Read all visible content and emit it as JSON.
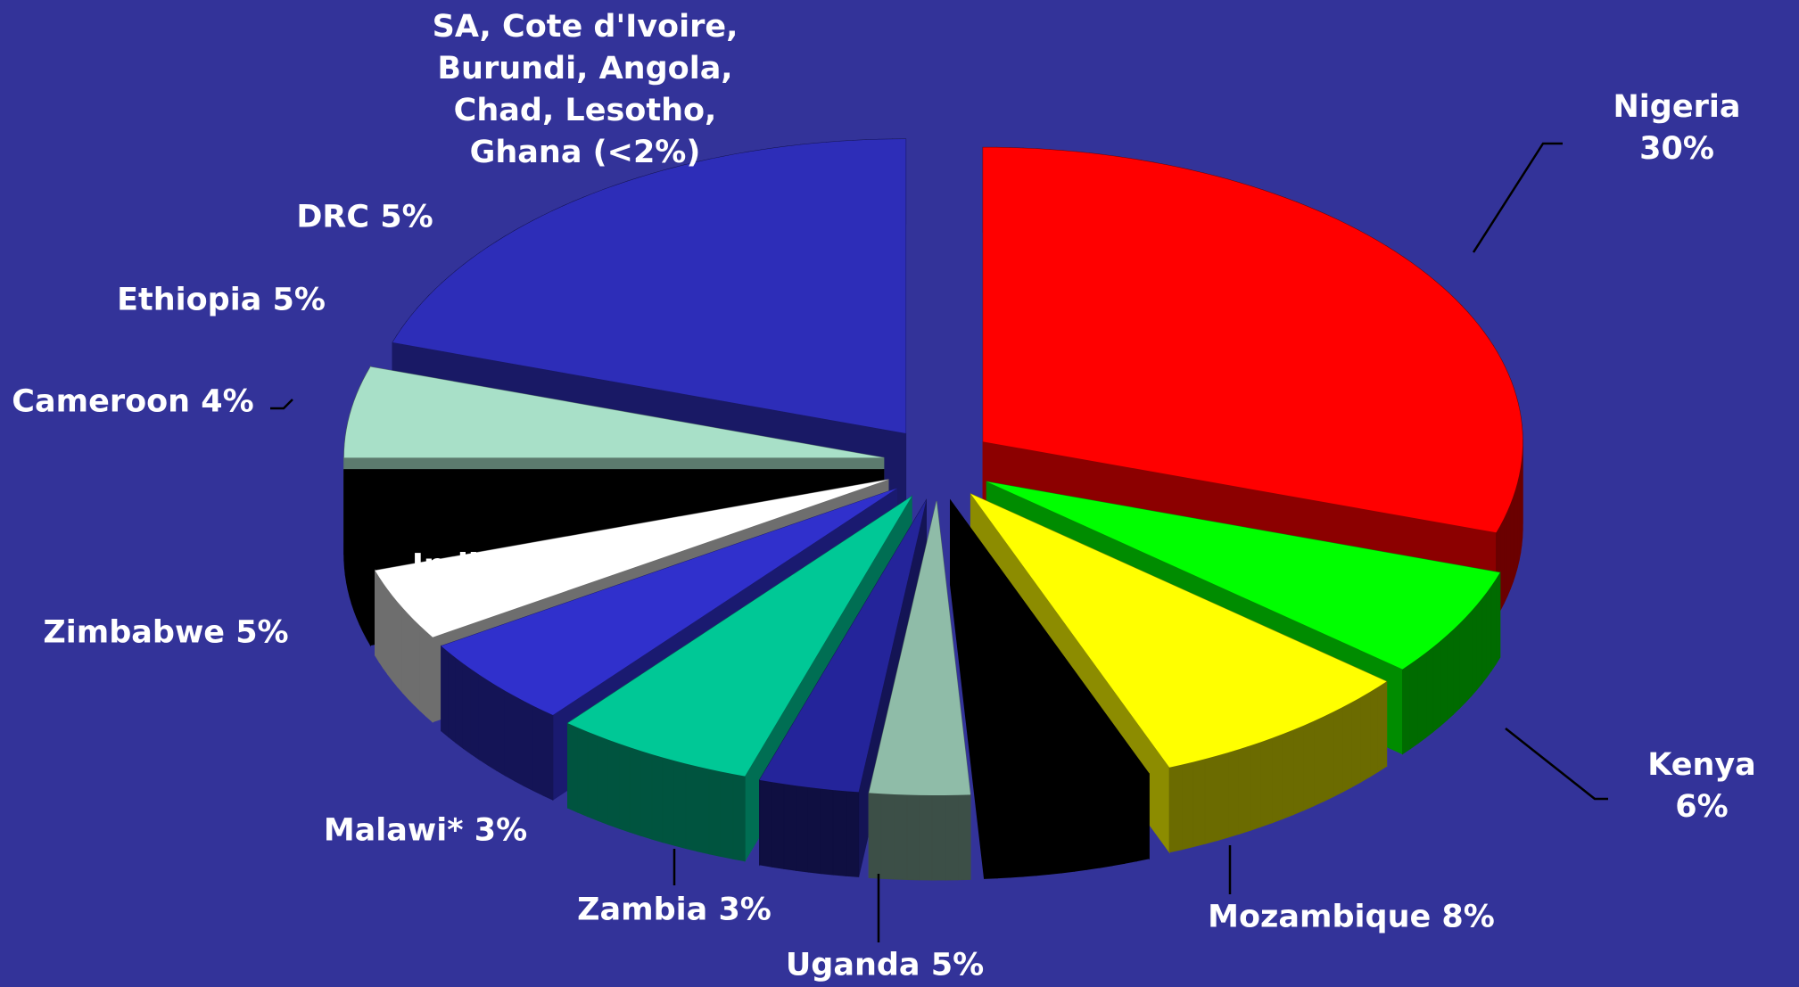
{
  "chart_data": {
    "type": "pie3d",
    "labels": [
      "Nigeria 30%",
      "Kenya 6%",
      "Mozambique 8%",
      "Uganda 5%",
      "Zambia 3%",
      "Malawi* 3%",
      "India 6%",
      "Zimbabwe 5%",
      "Cameroon 4%",
      "Ethiopia 5%",
      "DRC 5%",
      "SA, Cote d'Ivoire,\nBurundi, Angola,\nChad, Lesotho,\nGhana (<2%)"
    ],
    "values": [
      30,
      6,
      8,
      5,
      3,
      3,
      6,
      5,
      4,
      5,
      5,
      20
    ],
    "colors": [
      "#ff0000",
      "#00ff00",
      "#ffff00",
      "#000000",
      "#8fbca8",
      "#24249a",
      "#00c896",
      "#3030cc",
      "#ffffff",
      "#000000",
      "#a8e0c8",
      "#2d2db8"
    ]
  }
}
